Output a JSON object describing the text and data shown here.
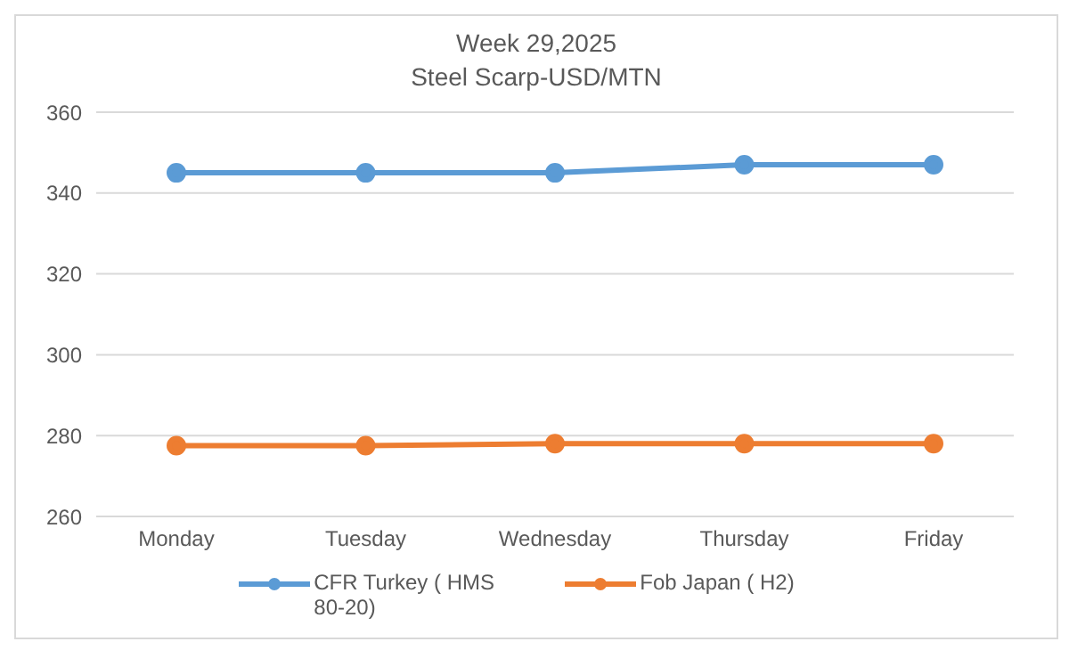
{
  "chart_data": {
    "type": "line",
    "title": "Week 29,2025",
    "subtitle": "Steel Scarp-USD/MTN",
    "categories": [
      "Monday",
      "Tuesday",
      "Wednesday",
      "Thursday",
      "Friday"
    ],
    "series": [
      {
        "name": "CFR Turkey ( HMS 80-20)",
        "color": "#5b9bd5",
        "values": [
          345,
          345,
          345,
          347,
          347
        ]
      },
      {
        "name": "Fob Japan ( H2)",
        "color": "#ed7d31",
        "values": [
          277.5,
          277.5,
          278,
          278,
          278
        ]
      }
    ],
    "ylim": [
      260,
      360
    ],
    "yticks": [
      260,
      280,
      300,
      320,
      340,
      360
    ],
    "grid": "y",
    "legend": "bottom",
    "marker": "circle",
    "line_style": "solid"
  }
}
